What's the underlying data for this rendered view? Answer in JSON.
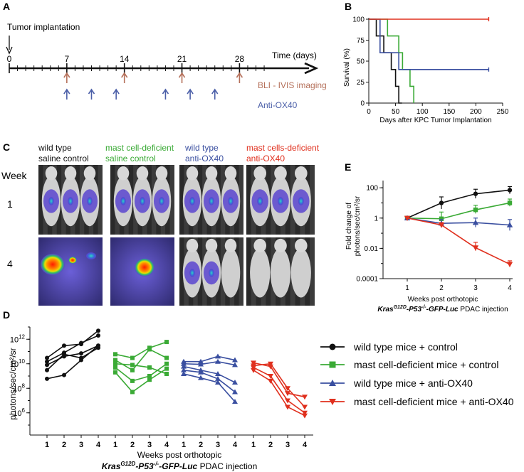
{
  "panels": {
    "a": "A",
    "b": "B",
    "c": "C",
    "d": "D",
    "e": "E"
  },
  "timeline": {
    "title": "Tumor implantation",
    "axis_label": "Time (days)",
    "ticks": [
      "0",
      "7",
      "14",
      "21",
      "28"
    ],
    "tick_values": [
      0,
      7,
      14,
      21,
      28
    ],
    "bli_days": [
      7,
      14,
      21,
      28
    ],
    "anti_ox40_days": [
      7,
      10,
      13,
      19,
      22,
      25
    ],
    "legend_bli": "BLI - IVIS imaging",
    "legend_ox40": "Anti-OX40",
    "colors": {
      "bli": "#b5705a",
      "ox40": "#4b5fa8",
      "axis": "#111111"
    }
  },
  "imaging": {
    "week_label": "Week",
    "rows": [
      "1",
      "4"
    ],
    "groups": [
      {
        "line1": "wild type",
        "line2": "saline control",
        "color1": "#111111",
        "color2": "#111111"
      },
      {
        "line1": "mast cell-deficient",
        "line2": "saline control",
        "color1": "#3aaa35",
        "color2": "#3aaa35"
      },
      {
        "line1": "wild type",
        "line2": "anti-OX40",
        "color1": "#3a4fa0",
        "color2": "#3a4fa0"
      },
      {
        "line1": "mast cells-deficient",
        "line2": "anti-OX40",
        "color1": "#e0301e",
        "color2": "#e0301e"
      }
    ]
  },
  "legend": {
    "items": [
      {
        "label": "wild type mice + control",
        "color": "#111111",
        "marker": "circle"
      },
      {
        "label": "mast cell-deficient mice + control",
        "color": "#3aaa35",
        "marker": "square"
      },
      {
        "label": "wild type mice + anti-OX40",
        "color": "#3a4fa0",
        "marker": "triangle-up"
      },
      {
        "label": "mast cell-deficient mice + anti-OX40",
        "color": "#e0301e",
        "marker": "triangle-down"
      }
    ]
  },
  "chart_data": [
    {
      "panel": "B",
      "type": "line",
      "title": "",
      "xlabel": "Days after KPC Tumor Implantation",
      "ylabel": "Survival (%)",
      "xlim": [
        0,
        250
      ],
      "ylim": [
        0,
        100
      ],
      "xticks": [
        0,
        50,
        100,
        150,
        200,
        250
      ],
      "yticks": [
        0,
        25,
        50,
        75,
        100
      ],
      "series": [
        {
          "name": "wild type mice + control",
          "color": "#111111",
          "x": [
            0,
            14,
            14,
            28,
            28,
            42,
            42,
            50,
            50,
            56,
            56,
            62,
            62
          ],
          "y": [
            100,
            100,
            80,
            80,
            60,
            60,
            40,
            40,
            20,
            20,
            0,
            0,
            0
          ]
        },
        {
          "name": "mast cell-deficient mice + control",
          "color": "#3aaa35",
          "x": [
            0,
            35,
            35,
            56,
            56,
            63,
            63,
            77,
            77,
            84,
            84
          ],
          "y": [
            100,
            100,
            80,
            80,
            60,
            60,
            40,
            40,
            20,
            20,
            0
          ]
        },
        {
          "name": "wild type mice + anti-OX40",
          "color": "#3a4fa0",
          "x": [
            0,
            21,
            21,
            56,
            56,
            63,
            63,
            224
          ],
          "y": [
            100,
            100,
            60,
            60,
            40,
            40,
            40,
            40
          ]
        },
        {
          "name": "mast cell-deficient mice + anti-OX40",
          "color": "#e0301e",
          "x": [
            0,
            224
          ],
          "y": [
            100,
            100
          ]
        }
      ]
    },
    {
      "panel": "E",
      "type": "line",
      "xlabel_line1": "Weeks post orthotopic",
      "xlabel_line2_prefix": "Kras",
      "xlabel_line2_sup1": "G12D",
      "xlabel_line2_mid": "-P53",
      "xlabel_line2_sup2": "-/-",
      "xlabel_line2_suffix": "-GFP-Luc",
      "xlabel_line2_tail": " PDAC injection",
      "ylabel_line1": "Fold change of",
      "ylabel_line2": "photons/sec/cm²/sr",
      "xticks": [
        1,
        2,
        3,
        4
      ],
      "yscale": "log",
      "ylim": [
        0.0001,
        300
      ],
      "yticks": [
        {
          "value": 100,
          "label": "100"
        },
        {
          "value": 1,
          "label": "1"
        },
        {
          "value": 0.01,
          "label": "0.01"
        },
        {
          "value": 0.0001,
          "label": "0.0001"
        }
      ],
      "series": [
        {
          "name": "wild type mice + control",
          "color": "#111111",
          "marker": "circle",
          "x": [
            1,
            2,
            3,
            4
          ],
          "y": [
            1,
            10,
            40,
            70
          ],
          "err_up": [
            1,
            25,
            80,
            120
          ],
          "err_dn": [
            1,
            4,
            20,
            40
          ]
        },
        {
          "name": "mast cell-deficient mice + control",
          "color": "#3aaa35",
          "marker": "square",
          "x": [
            1,
            2,
            3,
            4
          ],
          "y": [
            1,
            0.9,
            3.5,
            10
          ],
          "err_up": [
            1,
            2.5,
            7,
            18
          ],
          "err_dn": [
            1,
            0.4,
            2,
            6
          ]
        },
        {
          "name": "wild type mice + anti-OX40",
          "color": "#3a4fa0",
          "marker": "triangle-up",
          "x": [
            1,
            2,
            3,
            4
          ],
          "y": [
            1,
            0.45,
            0.5,
            0.35
          ],
          "err_up": [
            1,
            0.8,
            1,
            0.8
          ],
          "err_dn": [
            1,
            0.25,
            0.25,
            0.15
          ]
        },
        {
          "name": "mast cell-deficient mice + anti-OX40",
          "color": "#e0301e",
          "marker": "triangle-down",
          "x": [
            1,
            2,
            3,
            4
          ],
          "y": [
            1,
            0.35,
            0.011,
            0.0009
          ],
          "err_up": [
            1,
            0.5,
            0.025,
            0.0015
          ],
          "err_dn": [
            1,
            0.25,
            0.007,
            0.0006
          ]
        }
      ]
    },
    {
      "panel": "D",
      "type": "scatter",
      "ylabel": "photons/sec/cm²/sr",
      "xlabel_line1": "Weeks post  orthotopic",
      "xlabel_line2_prefix": "Kras",
      "xlabel_line2_sup1": "G12D",
      "xlabel_line2_mid": "-P53",
      "xlabel_line2_sup2": "-/-",
      "xlabel_line2_suffix": "-GFP-Luc",
      "xlabel_line2_tail": " PDAC injection",
      "yscale": "log",
      "ylim": [
        100000,
        10000000000000
      ],
      "yticks": [
        {
          "value": 1000000000000,
          "base": "10",
          "exp": "12"
        },
        {
          "value": 10000000000,
          "base": "10",
          "exp": "10"
        },
        {
          "value": 100000000,
          "base": "10",
          "exp": "8"
        },
        {
          "value": 1000000,
          "base": "10",
          "exp": "6"
        }
      ],
      "week_labels": [
        "1",
        "2",
        "3",
        "4"
      ],
      "groups": [
        {
          "name": "wild type mice + control",
          "color": "#111111",
          "marker": "circle",
          "mice": [
            [
              30000000000,
              300000000000,
              400000000000,
              5000000000000
            ],
            [
              15000000000,
              80000000000,
              500000000000,
              2000000000000
            ],
            [
              8000000000,
              40000000000,
              70000000000,
              300000000000
            ],
            [
              3000000000,
              60000000000,
              30000000000,
              200000000000
            ],
            [
              600000000,
              1200000000,
              20000000000,
              300000000000
            ]
          ]
        },
        {
          "name": "mast cell-deficient mice + control",
          "color": "#3aaa35",
          "marker": "square",
          "mice": [
            [
              60000000000,
              30000000000,
              200000000000,
              600000000000
            ],
            [
              20000000000,
              3000000000,
              150000000000,
              30000000000
            ],
            [
              10000000000,
              8000000000,
              5000000000,
              1500000000
            ],
            [
              5000000000,
              400000000,
              1000000000,
              10000000000
            ],
            [
              2000000000,
              50000000,
              500000000,
              4000000000
            ]
          ]
        },
        {
          "name": "wild type mice + anti-OX40",
          "color": "#3a4fa0",
          "marker": "triangle-up",
          "mice": [
            [
              15000000000,
              15000000000,
              40000000000,
              20000000000
            ],
            [
              10000000000,
              9000000000,
              15000000000,
              8000000000
            ],
            [
              6000000000,
              3000000000,
              1500000000,
              300000000
            ],
            [
              3000000000,
              2000000000,
              600000000,
              50000000
            ],
            [
              1500000000,
              700000000,
              300000000,
              8000000
            ]
          ]
        },
        {
          "name": "mast cell-deficient mice + anti-OX40",
          "color": "#e0301e",
          "marker": "triangle-down",
          "mice": [
            [
              12000000000,
              6000000000,
              40000000,
              20000000
            ],
            [
              7000000000,
              10000000000,
              100000000,
              3000000
            ],
            [
              5000000000,
              1000000000,
              10000000,
              1000000
            ],
            [
              3000000000,
              400000000,
              3000000,
              600000
            ]
          ]
        }
      ]
    }
  ]
}
